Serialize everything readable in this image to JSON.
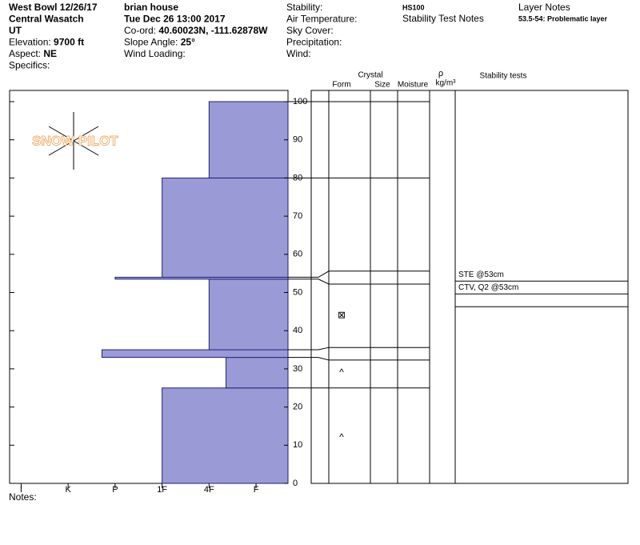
{
  "header": {
    "col1": [
      {
        "label": "West Bowl 12/26/17",
        "bold": true
      },
      {
        "label": "Central Wasatch",
        "bold": true
      },
      {
        "label": "UT",
        "bold": true
      },
      {
        "label": "Elevation: ",
        "value": "9700 ft"
      },
      {
        "label": "Aspect: ",
        "value": "NE"
      },
      {
        "label": "Specifics:"
      }
    ],
    "col2": [
      {
        "label": "brian house",
        "bold": true
      },
      {
        "label": "Tue Dec 26 13:00 2017",
        "bold": true
      },
      {
        "label": "Co-ord: ",
        "value": "40.60023N, -111.62878W"
      },
      {
        "label": "Slope Angle: ",
        "value": "25°"
      },
      {
        "label": "Wind Loading:"
      }
    ],
    "col3": [
      "Stability:",
      "Air Temperature:",
      "Sky Cover:",
      "Precipitation:",
      "Wind:"
    ],
    "hs": "HS100",
    "stability_test_notes": "Stability Test Notes",
    "layer_notes_title": "Layer Notes",
    "layer_notes": [
      "53.5-54: Problematic layer"
    ]
  },
  "logo": "SNOW PILOT",
  "profile": {
    "type": "bar",
    "ylim": [
      0,
      100
    ],
    "yticks": [
      0,
      10,
      20,
      30,
      40,
      50,
      60,
      70,
      80,
      90,
      100
    ],
    "xlim": [
      0.32,
      6.28
    ],
    "xticks": [
      {
        "value": 6,
        "label": "I"
      },
      {
        "value": 5,
        "label": "K"
      },
      {
        "value": 4,
        "label": "P"
      },
      {
        "value": 3,
        "label": "1F"
      },
      {
        "value": 2,
        "label": "4F"
      },
      {
        "value": 1,
        "label": "F"
      }
    ],
    "color": "#9a9ad6",
    "layers": [
      {
        "bottom": 0,
        "top": 25,
        "hardness": 3
      },
      {
        "bottom": 25,
        "top": 33,
        "hardness": 1.64
      },
      {
        "bottom": 33,
        "top": 35,
        "hardness": 4.28
      },
      {
        "bottom": 35,
        "top": 53.5,
        "hardness": 2
      },
      {
        "bottom": 53.5,
        "top": 54,
        "hardness": 4
      },
      {
        "bottom": 54,
        "top": 80,
        "hardness": 3
      },
      {
        "bottom": 80,
        "top": 100,
        "hardness": 2
      }
    ]
  },
  "table": {
    "headers": {
      "crystal": "Crystal",
      "form": "Form",
      "size": "Size",
      "moisture": "Moisture",
      "rho": "ρ",
      "density_unit": "kg/m³",
      "stability_tests": "Stability tests"
    },
    "boundaries": [
      {
        "height": 25,
        "table_height": 25
      },
      {
        "height": 33,
        "table_height": 32.3
      },
      {
        "height": 35,
        "table_height": 35.6
      },
      {
        "height": 53.5,
        "table_height": 52.2
      },
      {
        "height": 54,
        "table_height": 55.6
      },
      {
        "height": 80,
        "table_height": 80
      },
      {
        "height": 100,
        "table_height": 100
      }
    ],
    "crystals": [
      {
        "height": 44,
        "symbol": "⊠"
      },
      {
        "height": 29,
        "symbol": "^"
      },
      {
        "height": 12,
        "symbol": "^"
      }
    ],
    "tests_height": 53,
    "tests": [
      "STE @53cm",
      "CTV, Q2 @53cm"
    ]
  },
  "notes": "Notes:"
}
